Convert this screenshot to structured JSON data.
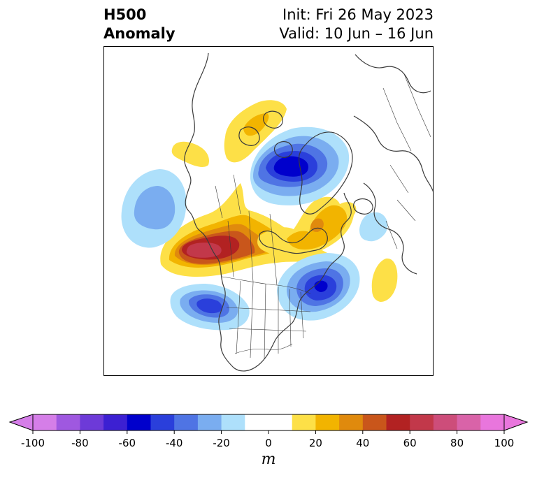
{
  "header": {
    "title_line1": "H500",
    "title_line2": "Anomaly",
    "init": "Init: Fri 26 May 2023",
    "valid": "Valid: 10 Jun – 16 Jun"
  },
  "colorbar": {
    "unit": "m",
    "ticks": [
      "-100",
      "-80",
      "-60",
      "-40",
      "-20",
      "0",
      "20",
      "40",
      "60",
      "80",
      "100"
    ],
    "range": [
      -100,
      100
    ],
    "bin_size": 10,
    "colors": [
      "#d57ee8",
      "#9f58e0",
      "#6d3ad8",
      "#3c20d2",
      "#0000cc",
      "#2a3fdb",
      "#4f74e4",
      "#7aadf0",
      "#aee0fb",
      "#ffffff",
      "#ffffff",
      "#fde047",
      "#f2b400",
      "#e08a0d",
      "#c9561b",
      "#b22222",
      "#c2384a",
      "#cd4d7a",
      "#d963a8",
      "#e976dd"
    ]
  },
  "map": {
    "projection": "polar-stereographic",
    "region": "North America / Arctic",
    "anomaly_centers": [
      {
        "sign": "positive",
        "approx_value_m": 70,
        "location": "Gulf of Alaska"
      },
      {
        "sign": "positive",
        "approx_value_m": 40,
        "location": "Hudson Bay"
      },
      {
        "sign": "positive",
        "approx_value_m": 30,
        "location": "Northern Canada"
      },
      {
        "sign": "positive",
        "approx_value_m": 20,
        "location": "Central North Atlantic"
      },
      {
        "sign": "negative",
        "approx_value_m": -60,
        "location": "Arctic / Northern Greenland"
      },
      {
        "sign": "negative",
        "approx_value_m": -50,
        "location": "Northeastern United States"
      },
      {
        "sign": "negative",
        "approx_value_m": -50,
        "location": "Western United States"
      },
      {
        "sign": "negative",
        "approx_value_m": -30,
        "location": "North Pacific"
      }
    ]
  }
}
